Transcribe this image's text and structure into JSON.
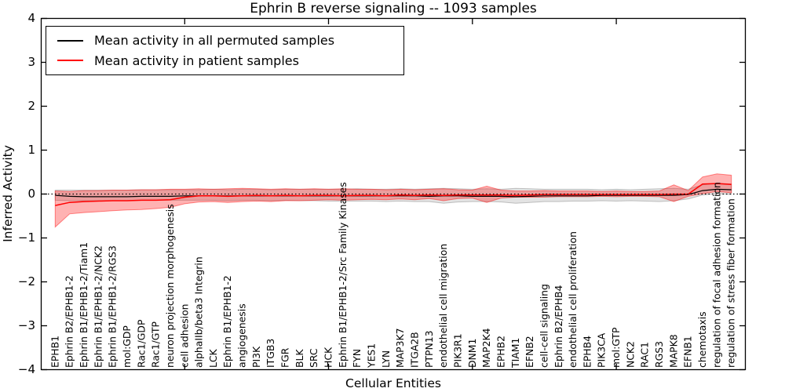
{
  "figure": {
    "title": "Ephrin B reverse signaling -- 1093 samples",
    "xlabel": "Cellular Entities",
    "ylabel": "Inferred Activity"
  },
  "legend": {
    "items": [
      {
        "label": "Mean activity in all permuted samples",
        "color": "#000000"
      },
      {
        "label": "Mean activity in patient samples",
        "color": "#ff0000"
      }
    ],
    "position": "upper left"
  },
  "chart_data": {
    "type": "line",
    "title": "Ephrin B reverse signaling -- 1093 samples",
    "xlabel": "Cellular Entities",
    "ylabel": "Inferred Activity",
    "ylim": [
      -4,
      4
    ],
    "yticks": [
      4,
      3,
      2,
      1,
      0,
      -1,
      -2,
      -3,
      -4
    ],
    "xtick_positions": [
      10,
      20,
      30,
      40
    ],
    "grid": false,
    "zero_line": {
      "style": "dotted",
      "color": "#000000",
      "y": 0
    },
    "categories": [
      "EPHB1",
      "Ephrin B2/EPHB1-2",
      "Ephrin B1/EPHB1-2/Tiam1",
      "Ephrin B1/EPHB1-2/NCK2",
      "Ephrin B1/EPHB1-2/RGS3",
      "mol:GDP",
      "Rac1/GDP",
      "Rac1/GTP",
      "neuron projection morphogenesis",
      "cell adhesion",
      "alphaIIb/beta3 Integrin",
      "LCK",
      "Ephrin B1/EPHB1-2",
      "angiogenesis",
      "PI3K",
      "ITGB3",
      "FGR",
      "BLK",
      "SRC",
      "HCK",
      "Ephrin B1/EPHB1-2/Src Family Kinases",
      "FYN",
      "YES1",
      "LYN",
      "MAP3K7",
      "ITGA2B",
      "PTPN13",
      "endothelial cell migration",
      "PIK3R1",
      "DNM1",
      "MAP2K4",
      "EPHB2",
      "TIAM1",
      "EFNB2",
      "cell-cell signaling",
      "Ephrin B2/EPHB4",
      "endothelial cell proliferation",
      "EPHB4",
      "PIK3CA",
      "mol:GTP",
      "NCK2",
      "RAC1",
      "RGS3",
      "MAPK8",
      "EFNB1",
      "chemotaxis",
      "regulation of focal adhesion formation",
      "regulation of stress fiber formation"
    ],
    "series": [
      {
        "name": "Mean activity in all permuted samples",
        "color": "#000000",
        "values": [
          -0.04,
          -0.06,
          -0.07,
          -0.07,
          -0.07,
          -0.07,
          -0.06,
          -0.06,
          -0.06,
          -0.05,
          -0.05,
          -0.05,
          -0.05,
          -0.05,
          -0.05,
          -0.05,
          -0.05,
          -0.05,
          -0.05,
          -0.05,
          -0.05,
          -0.05,
          -0.05,
          -0.05,
          -0.05,
          -0.05,
          -0.06,
          -0.05,
          -0.05,
          -0.06,
          -0.06,
          -0.06,
          -0.07,
          -0.06,
          -0.05,
          -0.05,
          -0.05,
          -0.05,
          -0.04,
          -0.04,
          -0.04,
          -0.04,
          -0.04,
          -0.04,
          -0.02,
          0.07,
          0.1,
          0.09
        ]
      },
      {
        "name": "Mean activity in patient samples",
        "color": "#ff0000",
        "values": [
          -0.27,
          -0.2,
          -0.18,
          -0.17,
          -0.16,
          -0.16,
          -0.15,
          -0.15,
          -0.14,
          -0.08,
          -0.05,
          -0.05,
          -0.06,
          -0.05,
          -0.04,
          -0.05,
          -0.04,
          -0.05,
          -0.04,
          -0.04,
          -0.05,
          -0.04,
          -0.04,
          -0.05,
          -0.03,
          -0.04,
          -0.03,
          -0.04,
          -0.03,
          -0.03,
          -0.03,
          -0.03,
          -0.04,
          -0.03,
          -0.02,
          -0.02,
          -0.02,
          -0.02,
          -0.02,
          -0.02,
          -0.02,
          -0.02,
          -0.02,
          -0.01,
          -0.01,
          0.22,
          0.23,
          0.21
        ]
      }
    ],
    "bands": [
      {
        "name": "permuted samples range",
        "color": "#808080",
        "fill_opacity": 0.22,
        "lo": [
          -0.15,
          -0.16,
          -0.16,
          -0.16,
          -0.16,
          -0.16,
          -0.15,
          -0.15,
          -0.15,
          -0.15,
          -0.15,
          -0.15,
          -0.16,
          -0.15,
          -0.15,
          -0.16,
          -0.15,
          -0.16,
          -0.16,
          -0.17,
          -0.17,
          -0.17,
          -0.17,
          -0.18,
          -0.17,
          -0.18,
          -0.18,
          -0.22,
          -0.19,
          -0.18,
          -0.18,
          -0.19,
          -0.22,
          -0.2,
          -0.18,
          -0.18,
          -0.17,
          -0.17,
          -0.16,
          -0.17,
          -0.16,
          -0.17,
          -0.18,
          -0.16,
          -0.12,
          -0.03,
          0.0,
          -0.02
        ],
        "hi": [
          0.08,
          0.08,
          0.08,
          0.08,
          0.08,
          0.08,
          0.09,
          0.09,
          0.09,
          0.09,
          0.09,
          0.1,
          0.09,
          0.1,
          0.1,
          0.09,
          0.1,
          0.1,
          0.1,
          0.1,
          0.1,
          0.11,
          0.1,
          0.1,
          0.11,
          0.1,
          0.11,
          0.12,
          0.11,
          0.1,
          0.11,
          0.1,
          0.12,
          0.11,
          0.1,
          0.1,
          0.1,
          0.1,
          0.09,
          0.1,
          0.09,
          0.1,
          0.11,
          0.12,
          0.1,
          0.2,
          0.24,
          0.22
        ]
      },
      {
        "name": "patient samples range",
        "color": "#ff0000",
        "fill_opacity": 0.3,
        "lo": [
          -0.76,
          -0.46,
          -0.43,
          -0.41,
          -0.39,
          -0.37,
          -0.36,
          -0.34,
          -0.31,
          -0.23,
          -0.19,
          -0.18,
          -0.2,
          -0.18,
          -0.17,
          -0.18,
          -0.16,
          -0.16,
          -0.15,
          -0.14,
          -0.15,
          -0.14,
          -0.13,
          -0.14,
          -0.12,
          -0.14,
          -0.11,
          -0.16,
          -0.11,
          -0.1,
          -0.2,
          -0.1,
          -0.08,
          -0.08,
          -0.08,
          -0.07,
          -0.07,
          -0.07,
          -0.06,
          -0.07,
          -0.06,
          -0.06,
          -0.07,
          -0.18,
          -0.06,
          0.0,
          0.05,
          0.02
        ],
        "hi": [
          0.06,
          0.05,
          0.07,
          0.07,
          0.08,
          0.08,
          0.09,
          0.09,
          0.1,
          0.1,
          0.11,
          0.1,
          0.11,
          0.12,
          0.11,
          0.1,
          0.11,
          0.1,
          0.11,
          0.1,
          0.11,
          0.1,
          0.1,
          0.09,
          0.1,
          0.09,
          0.1,
          0.11,
          0.09,
          0.08,
          0.17,
          0.08,
          0.06,
          0.06,
          0.07,
          0.06,
          0.06,
          0.06,
          0.05,
          0.06,
          0.05,
          0.05,
          0.06,
          0.2,
          0.07,
          0.38,
          0.45,
          0.42
        ]
      }
    ],
    "legend_position": "upper left"
  },
  "colors": {
    "background": "#ffffff",
    "axis": "#000000",
    "permuted_line": "#000000",
    "patient_line": "#ff0000"
  }
}
